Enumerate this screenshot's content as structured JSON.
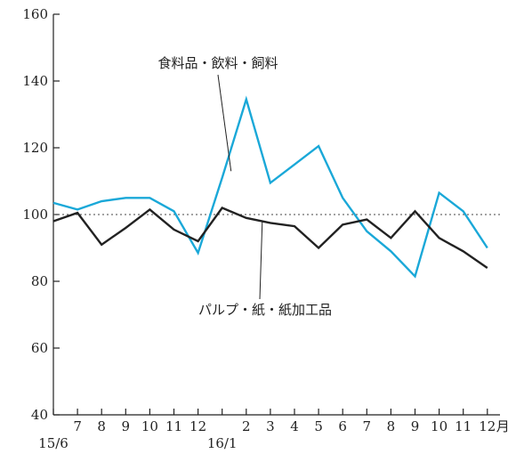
{
  "chart_data": {
    "type": "line",
    "title": "",
    "xlabel": "",
    "ylabel": "",
    "x_unit": "月",
    "categories": [
      "6",
      "7",
      "8",
      "9",
      "10",
      "11",
      "12",
      "1",
      "2",
      "3",
      "4",
      "5",
      "6",
      "7",
      "8",
      "9",
      "10",
      "11",
      "12"
    ],
    "x_tick_labels": [
      "",
      "7",
      "8",
      "9",
      "10",
      "11",
      "12",
      "",
      "2",
      "3",
      "4",
      "5",
      "6",
      "7",
      "8",
      "9",
      "10",
      "11",
      "12"
    ],
    "year_labels": [
      {
        "index": 0,
        "label": "15/6"
      },
      {
        "index": 7,
        "label": "16/1"
      }
    ],
    "ylim": [
      40,
      160
    ],
    "y_ticks": [
      40,
      60,
      80,
      100,
      120,
      140,
      160
    ],
    "reference_line": {
      "value": 100,
      "style": "dotted"
    },
    "grid": false,
    "series": [
      {
        "name": "食料品・飲料・飼料",
        "color": "#1aa8d8",
        "values": [
          103.5,
          101.5,
          104,
          105,
          105,
          101,
          88.5,
          111,
          134.5,
          109.5,
          115,
          120.5,
          105,
          95,
          89,
          81.5,
          106.5,
          101,
          90
        ]
      },
      {
        "name": "パルプ・紙・紙加工品",
        "color": "#222222",
        "values": [
          98,
          100.5,
          91,
          96,
          101.5,
          95.5,
          92,
          102,
          99,
          97.5,
          96.5,
          90,
          97,
          98.5,
          93,
          101,
          93,
          89,
          84
        ]
      }
    ],
    "annotations": [
      {
        "series": 0,
        "text": "食料品・飲料・飼料",
        "point_index": 7
      },
      {
        "series": 1,
        "text": "パルプ・紙・紙加工品",
        "point_index": 9
      }
    ]
  }
}
